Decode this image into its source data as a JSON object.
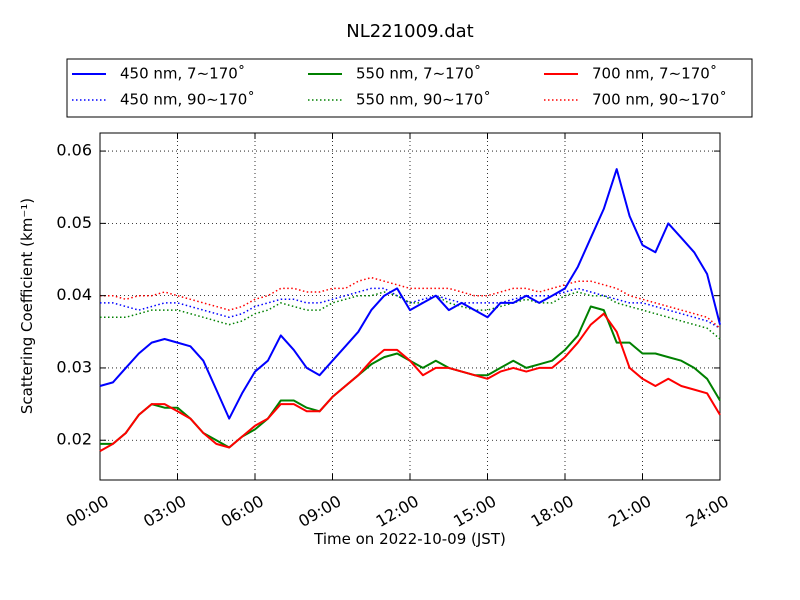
{
  "chart_data": {
    "type": "line",
    "title": "NL221009.dat",
    "xlabel": "Time on 2022-10-09 (JST)",
    "ylabel": "Scattering Coefficient (km⁻¹)",
    "x_unit": "hours",
    "xlim": [
      0,
      24
    ],
    "ylim": [
      0.0145,
      0.0625
    ],
    "x_ticks": [
      {
        "value": 0,
        "label": "00:00"
      },
      {
        "value": 3,
        "label": "03:00"
      },
      {
        "value": 6,
        "label": "06:00"
      },
      {
        "value": 9,
        "label": "09:00"
      },
      {
        "value": 12,
        "label": "12:00"
      },
      {
        "value": 15,
        "label": "15:00"
      },
      {
        "value": 18,
        "label": "18:00"
      },
      {
        "value": 21,
        "label": "21:00"
      },
      {
        "value": 24,
        "label": "24:00"
      }
    ],
    "y_ticks": [
      {
        "value": 0.02,
        "label": "0.02"
      },
      {
        "value": 0.03,
        "label": "0.03"
      },
      {
        "value": 0.04,
        "label": "0.04"
      },
      {
        "value": 0.05,
        "label": "0.05"
      },
      {
        "value": 0.06,
        "label": "0.06"
      }
    ],
    "grid": true,
    "legend_position": "top, above plot, 3 columns",
    "x": [
      0,
      0.5,
      1,
      1.5,
      2,
      2.5,
      3,
      3.5,
      4,
      4.5,
      5,
      5.5,
      6,
      6.5,
      7,
      7.5,
      8,
      8.5,
      9,
      9.5,
      10,
      10.5,
      11,
      11.5,
      12,
      12.5,
      13,
      13.5,
      14,
      14.5,
      15,
      15.5,
      16,
      16.5,
      17,
      17.5,
      18,
      18.5,
      19,
      19.5,
      20,
      20.5,
      21,
      21.5,
      22,
      22.5,
      23,
      23.5,
      24
    ],
    "series": [
      {
        "name": "450 nm, 7∼170˚",
        "color": "#0000ff",
        "style": "solid",
        "values": [
          0.0275,
          0.028,
          0.03,
          0.032,
          0.0335,
          0.034,
          0.0335,
          0.033,
          0.031,
          0.027,
          0.023,
          0.0265,
          0.0295,
          0.031,
          0.0345,
          0.0325,
          0.03,
          0.029,
          0.031,
          0.033,
          0.035,
          0.038,
          0.04,
          0.041,
          0.038,
          0.039,
          0.04,
          0.038,
          0.039,
          0.038,
          0.037,
          0.039,
          0.039,
          0.04,
          0.039,
          0.04,
          0.041,
          0.044,
          0.048,
          0.052,
          0.0575,
          0.051,
          0.047,
          0.046,
          0.05,
          0.048,
          0.046,
          0.043,
          0.036
        ]
      },
      {
        "name": "450 nm, 90∼170˚",
        "color": "#0000ff",
        "style": "dotted",
        "values": [
          0.039,
          0.039,
          0.0385,
          0.038,
          0.0385,
          0.039,
          0.039,
          0.0385,
          0.038,
          0.0375,
          0.037,
          0.0375,
          0.0385,
          0.039,
          0.0395,
          0.0395,
          0.039,
          0.039,
          0.0395,
          0.04,
          0.0405,
          0.041,
          0.041,
          0.04,
          0.039,
          0.0395,
          0.04,
          0.0395,
          0.039,
          0.039,
          0.039,
          0.039,
          0.0395,
          0.04,
          0.04,
          0.04,
          0.0405,
          0.041,
          0.0405,
          0.04,
          0.0395,
          0.039,
          0.039,
          0.0385,
          0.038,
          0.0375,
          0.037,
          0.0365,
          0.0355
        ]
      },
      {
        "name": "550 nm, 7∼170˚",
        "color": "#008000",
        "style": "solid",
        "values": [
          0.0195,
          0.0195,
          0.021,
          0.0235,
          0.025,
          0.0245,
          0.0245,
          0.023,
          0.021,
          0.02,
          0.019,
          0.0205,
          0.0215,
          0.023,
          0.0255,
          0.0255,
          0.0245,
          0.024,
          0.026,
          0.0275,
          0.029,
          0.0305,
          0.0315,
          0.032,
          0.031,
          0.03,
          0.031,
          0.03,
          0.0295,
          0.029,
          0.029,
          0.03,
          0.031,
          0.03,
          0.0305,
          0.031,
          0.0325,
          0.0345,
          0.0385,
          0.038,
          0.0335,
          0.0335,
          0.032,
          0.032,
          0.0315,
          0.031,
          0.03,
          0.0285,
          0.0255
        ]
      },
      {
        "name": "550 nm, 90∼170˚",
        "color": "#008000",
        "style": "dotted",
        "values": [
          0.037,
          0.037,
          0.037,
          0.0375,
          0.038,
          0.038,
          0.038,
          0.0375,
          0.037,
          0.0365,
          0.036,
          0.0365,
          0.0375,
          0.038,
          0.039,
          0.0385,
          0.038,
          0.038,
          0.039,
          0.0395,
          0.04,
          0.04,
          0.0405,
          0.04,
          0.039,
          0.039,
          0.04,
          0.039,
          0.0385,
          0.038,
          0.038,
          0.0385,
          0.039,
          0.0395,
          0.039,
          0.039,
          0.04,
          0.0405,
          0.04,
          0.04,
          0.039,
          0.0385,
          0.038,
          0.0375,
          0.037,
          0.0365,
          0.036,
          0.0355,
          0.034
        ]
      },
      {
        "name": "700 nm, 7∼170˚",
        "color": "#ff0000",
        "style": "solid",
        "values": [
          0.0185,
          0.0195,
          0.021,
          0.0235,
          0.025,
          0.025,
          0.024,
          0.023,
          0.021,
          0.0195,
          0.019,
          0.0205,
          0.022,
          0.023,
          0.025,
          0.025,
          0.024,
          0.024,
          0.026,
          0.0275,
          0.029,
          0.031,
          0.0325,
          0.0325,
          0.031,
          0.029,
          0.03,
          0.03,
          0.0295,
          0.029,
          0.0285,
          0.0295,
          0.03,
          0.0295,
          0.03,
          0.03,
          0.0315,
          0.0335,
          0.036,
          0.0375,
          0.035,
          0.03,
          0.0285,
          0.0275,
          0.0285,
          0.0275,
          0.027,
          0.0265,
          0.0235
        ]
      },
      {
        "name": "700 nm, 90∼170˚",
        "color": "#ff0000",
        "style": "dotted",
        "values": [
          0.04,
          0.04,
          0.0395,
          0.04,
          0.04,
          0.0405,
          0.04,
          0.0395,
          0.039,
          0.0385,
          0.038,
          0.0385,
          0.0395,
          0.04,
          0.041,
          0.041,
          0.0405,
          0.0405,
          0.041,
          0.041,
          0.042,
          0.0425,
          0.042,
          0.0415,
          0.041,
          0.041,
          0.041,
          0.041,
          0.0405,
          0.04,
          0.04,
          0.0405,
          0.041,
          0.041,
          0.0405,
          0.041,
          0.0415,
          0.042,
          0.042,
          0.0415,
          0.041,
          0.04,
          0.0395,
          0.039,
          0.0385,
          0.038,
          0.0375,
          0.037,
          0.0355
        ]
      }
    ]
  }
}
